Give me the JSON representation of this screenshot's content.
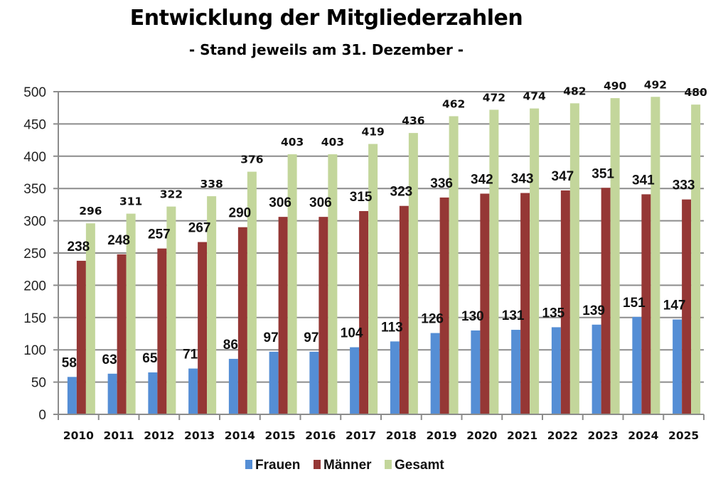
{
  "chart_data": {
    "type": "bar",
    "title": "Entwicklung der Mitgliederzahlen",
    "subtitle": "- Stand jeweils am 31. Dezember -",
    "xlabel": "",
    "ylabel": "",
    "ylim": [
      0,
      500
    ],
    "yticks": [
      0,
      50,
      100,
      150,
      200,
      250,
      300,
      350,
      400,
      450,
      500
    ],
    "grid": true,
    "legend_position": "bottom",
    "categories": [
      "2010",
      "2011",
      "2012",
      "2013",
      "2014",
      "2015",
      "2016",
      "2017",
      "2018",
      "2019",
      "2020",
      "2021",
      "2022",
      "2023",
      "2024",
      "2025"
    ],
    "series": [
      {
        "name": "Frauen",
        "color": "#558ED5",
        "values": [
          58,
          63,
          65,
          71,
          86,
          97,
          97,
          104,
          113,
          126,
          130,
          131,
          135,
          139,
          151,
          147
        ]
      },
      {
        "name": "Männer",
        "color": "#953735",
        "values": [
          238,
          248,
          257,
          267,
          290,
          306,
          306,
          315,
          323,
          336,
          342,
          343,
          347,
          351,
          341,
          333
        ]
      },
      {
        "name": "Gesamt",
        "color": "#C3D69B",
        "values": [
          296,
          311,
          322,
          338,
          376,
          403,
          403,
          419,
          436,
          462,
          472,
          474,
          482,
          490,
          492,
          480
        ]
      }
    ]
  }
}
